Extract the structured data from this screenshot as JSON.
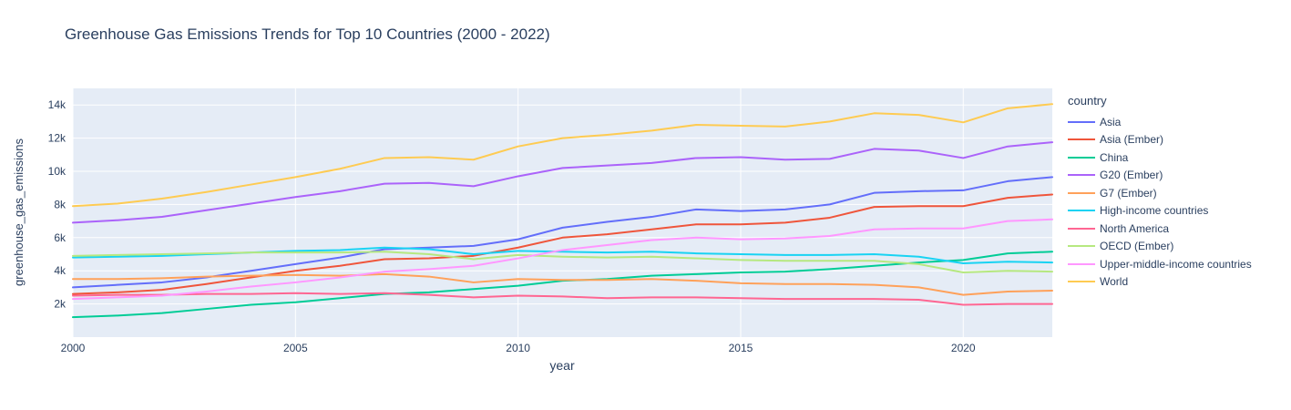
{
  "colors": {
    "page_bg": "#FFFFFF",
    "plot_bg": "#E5ECF6",
    "grid": "#FFFFFF",
    "text": "#2A3F5F"
  },
  "chart_data": {
    "type": "line",
    "title": "Greenhouse Gas Emissions Trends for Top 10 Countries (2000 - 2022)",
    "xlabel": "year",
    "ylabel": "greenhouse_gas_emissions",
    "legend_title": "country",
    "legend_position": "right",
    "grid": true,
    "xlim": [
      2000,
      2022
    ],
    "ylim": [
      0,
      15000
    ],
    "x_ticks": [
      {
        "value": 2000,
        "label": "2000"
      },
      {
        "value": 2005,
        "label": "2005"
      },
      {
        "value": 2010,
        "label": "2010"
      },
      {
        "value": 2015,
        "label": "2015"
      },
      {
        "value": 2020,
        "label": "2020"
      }
    ],
    "y_ticks": [
      {
        "value": 2000,
        "label": "2k"
      },
      {
        "value": 4000,
        "label": "4k"
      },
      {
        "value": 6000,
        "label": "6k"
      },
      {
        "value": 8000,
        "label": "8k"
      },
      {
        "value": 10000,
        "label": "10k"
      },
      {
        "value": 12000,
        "label": "12k"
      },
      {
        "value": 14000,
        "label": "14k"
      }
    ],
    "x": [
      2000,
      2001,
      2002,
      2003,
      2004,
      2005,
      2006,
      2007,
      2008,
      2009,
      2010,
      2011,
      2012,
      2013,
      2014,
      2015,
      2016,
      2017,
      2018,
      2019,
      2020,
      2021,
      2022
    ],
    "series": [
      {
        "name": "Asia",
        "color": "#636EFA",
        "values": [
          3000,
          3150,
          3300,
          3600,
          4000,
          4400,
          4800,
          5300,
          5400,
          5500,
          5900,
          6600,
          6950,
          7250,
          7700,
          7600,
          7700,
          8000,
          8700,
          8800,
          8850,
          9400,
          9650
        ]
      },
      {
        "name": "Asia (Ember)",
        "color": "#EF553B",
        "values": [
          2600,
          2700,
          2850,
          3200,
          3600,
          4000,
          4300,
          4700,
          4750,
          4900,
          5400,
          6000,
          6200,
          6500,
          6800,
          6800,
          6900,
          7200,
          7850,
          7900,
          7900,
          8400,
          8600
        ]
      },
      {
        "name": "China",
        "color": "#00CC96",
        "values": [
          1200,
          1300,
          1450,
          1700,
          1950,
          2100,
          2350,
          2600,
          2700,
          2900,
          3100,
          3400,
          3500,
          3700,
          3800,
          3900,
          3950,
          4100,
          4300,
          4500,
          4650,
          5050,
          5150
        ]
      },
      {
        "name": "G20 (Ember)",
        "color": "#AB63FA",
        "values": [
          6900,
          7050,
          7250,
          7650,
          8050,
          8450,
          8800,
          9250,
          9300,
          9100,
          9700,
          10200,
          10350,
          10500,
          10800,
          10850,
          10700,
          10750,
          11350,
          11250,
          10800,
          11500,
          11750
        ]
      },
      {
        "name": "G7 (Ember)",
        "color": "#FFA15A",
        "values": [
          3500,
          3500,
          3550,
          3650,
          3700,
          3750,
          3700,
          3800,
          3650,
          3300,
          3500,
          3450,
          3450,
          3500,
          3400,
          3250,
          3200,
          3200,
          3150,
          3000,
          2550,
          2750,
          2800
        ]
      },
      {
        "name": "High-income countries",
        "color": "#19D3F3",
        "values": [
          4800,
          4850,
          4900,
          5000,
          5100,
          5200,
          5250,
          5400,
          5300,
          5000,
          5200,
          5150,
          5100,
          5150,
          5050,
          5000,
          4950,
          4950,
          5000,
          4850,
          4450,
          4550,
          4500
        ]
      },
      {
        "name": "North America",
        "color": "#FF6692",
        "values": [
          2500,
          2550,
          2550,
          2600,
          2600,
          2650,
          2600,
          2650,
          2550,
          2400,
          2500,
          2450,
          2350,
          2400,
          2400,
          2350,
          2300,
          2300,
          2300,
          2250,
          1950,
          2000,
          2000
        ]
      },
      {
        "name": "OECD (Ember)",
        "color": "#B6E880",
        "values": [
          4900,
          4950,
          5000,
          5050,
          5100,
          5100,
          5100,
          5150,
          5000,
          4700,
          4950,
          4850,
          4800,
          4850,
          4750,
          4650,
          4600,
          4600,
          4600,
          4400,
          3900,
          4000,
          3950
        ]
      },
      {
        "name": "Upper-middle-income countries",
        "color": "#FF97FF",
        "values": [
          2300,
          2400,
          2500,
          2750,
          3050,
          3300,
          3600,
          3950,
          4100,
          4300,
          4750,
          5250,
          5550,
          5850,
          6000,
          5900,
          5950,
          6100,
          6500,
          6550,
          6550,
          7000,
          7100
        ]
      },
      {
        "name": "World",
        "color": "#FECB52",
        "values": [
          7900,
          8050,
          8350,
          8750,
          9200,
          9650,
          10150,
          10800,
          10850,
          10700,
          11500,
          12000,
          12200,
          12450,
          12800,
          12750,
          12700,
          13000,
          13500,
          13400,
          12950,
          13800,
          14050
        ]
      }
    ]
  }
}
